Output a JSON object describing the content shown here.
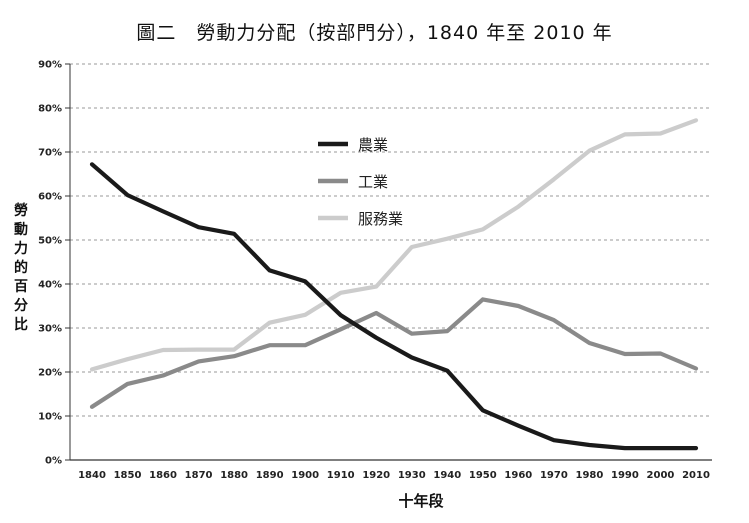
{
  "chart_data": {
    "type": "line",
    "title": "圖二　勞動力分配（按部門分），1840 年至 2010 年",
    "xlabel": "十年段",
    "ylabel": "勞動力的百分比",
    "x": [
      "1840",
      "1850",
      "1860",
      "1870",
      "1880",
      "1890",
      "1900",
      "1910",
      "1920",
      "1930",
      "1940",
      "1950",
      "1960",
      "1970",
      "1980",
      "1990",
      "2000",
      "2010"
    ],
    "yticks": [
      "0%",
      "10%",
      "20%",
      "30%",
      "40%",
      "50%",
      "60%",
      "70%",
      "80%",
      "90%"
    ],
    "ylim": [
      0,
      90
    ],
    "grid": true,
    "legend": "upper-center",
    "series": [
      {
        "name": "農業",
        "color": "#1a1a1a",
        "values": [
          67.2,
          60.2,
          56.5,
          52.9,
          51.4,
          43.1,
          40.6,
          32.9,
          27.8,
          23.3,
          20.3,
          11.3,
          7.8,
          4.5,
          3.4,
          2.7,
          2.7,
          2.7
        ]
      },
      {
        "name": "工業",
        "color": "#8a8a8a",
        "values": [
          12.1,
          17.3,
          19.2,
          22.4,
          23.6,
          26.1,
          26.1,
          29.7,
          33.4,
          28.7,
          29.3,
          36.5,
          35.0,
          31.8,
          26.6,
          24.1,
          24.2,
          20.8
        ]
      },
      {
        "name": "服務業",
        "color": "#cccccc",
        "values": [
          20.6,
          22.9,
          25.0,
          25.1,
          25.1,
          31.2,
          33.0,
          38.0,
          39.4,
          48.4,
          50.3,
          52.4,
          57.6,
          63.8,
          70.3,
          74.0,
          74.2,
          77.2
        ]
      }
    ]
  }
}
